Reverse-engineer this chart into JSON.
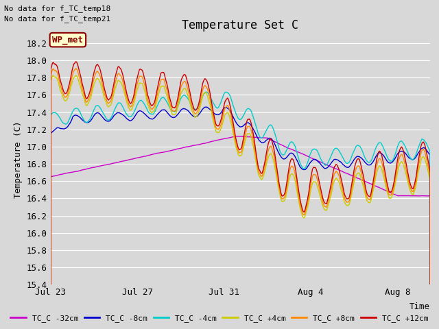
{
  "title": "Temperature Set C",
  "ylabel": "Temperature (C)",
  "xlabel": "Time",
  "text_no_data": [
    "No data for f_TC_temp18",
    "No data for f_TC_temp21"
  ],
  "wp_met_label": "WP_met",
  "ylim": [
    15.4,
    18.3
  ],
  "xlim_days": [
    0,
    17.5
  ],
  "xtick_labels": [
    "Jul 23",
    "Jul 27",
    "Jul 31",
    "Aug 4",
    "Aug 8"
  ],
  "xtick_positions": [
    0,
    4,
    8,
    12,
    16
  ],
  "ytick_values": [
    15.4,
    15.6,
    15.8,
    16.0,
    16.2,
    16.4,
    16.6,
    16.8,
    17.0,
    17.2,
    17.4,
    17.6,
    17.8,
    18.0,
    18.2
  ],
  "series_colors": {
    "TC_C -32cm": "#cc00cc",
    "TC_C -8cm": "#0000cc",
    "TC_C -4cm": "#00cccc",
    "TC_C +4cm": "#cccc00",
    "TC_C +8cm": "#ff8800",
    "TC_C +12cm": "#cc0000"
  },
  "legend_order": [
    "TC_C -32cm",
    "TC_C -8cm",
    "TC_C -4cm",
    "TC_C +4cm",
    "TC_C +8cm",
    "TC_C +12cm"
  ],
  "bg_color": "#d8d8d8",
  "plot_bg_color": "#d8d8d8",
  "grid_color": "#ffffff",
  "linewidth": 1.0
}
